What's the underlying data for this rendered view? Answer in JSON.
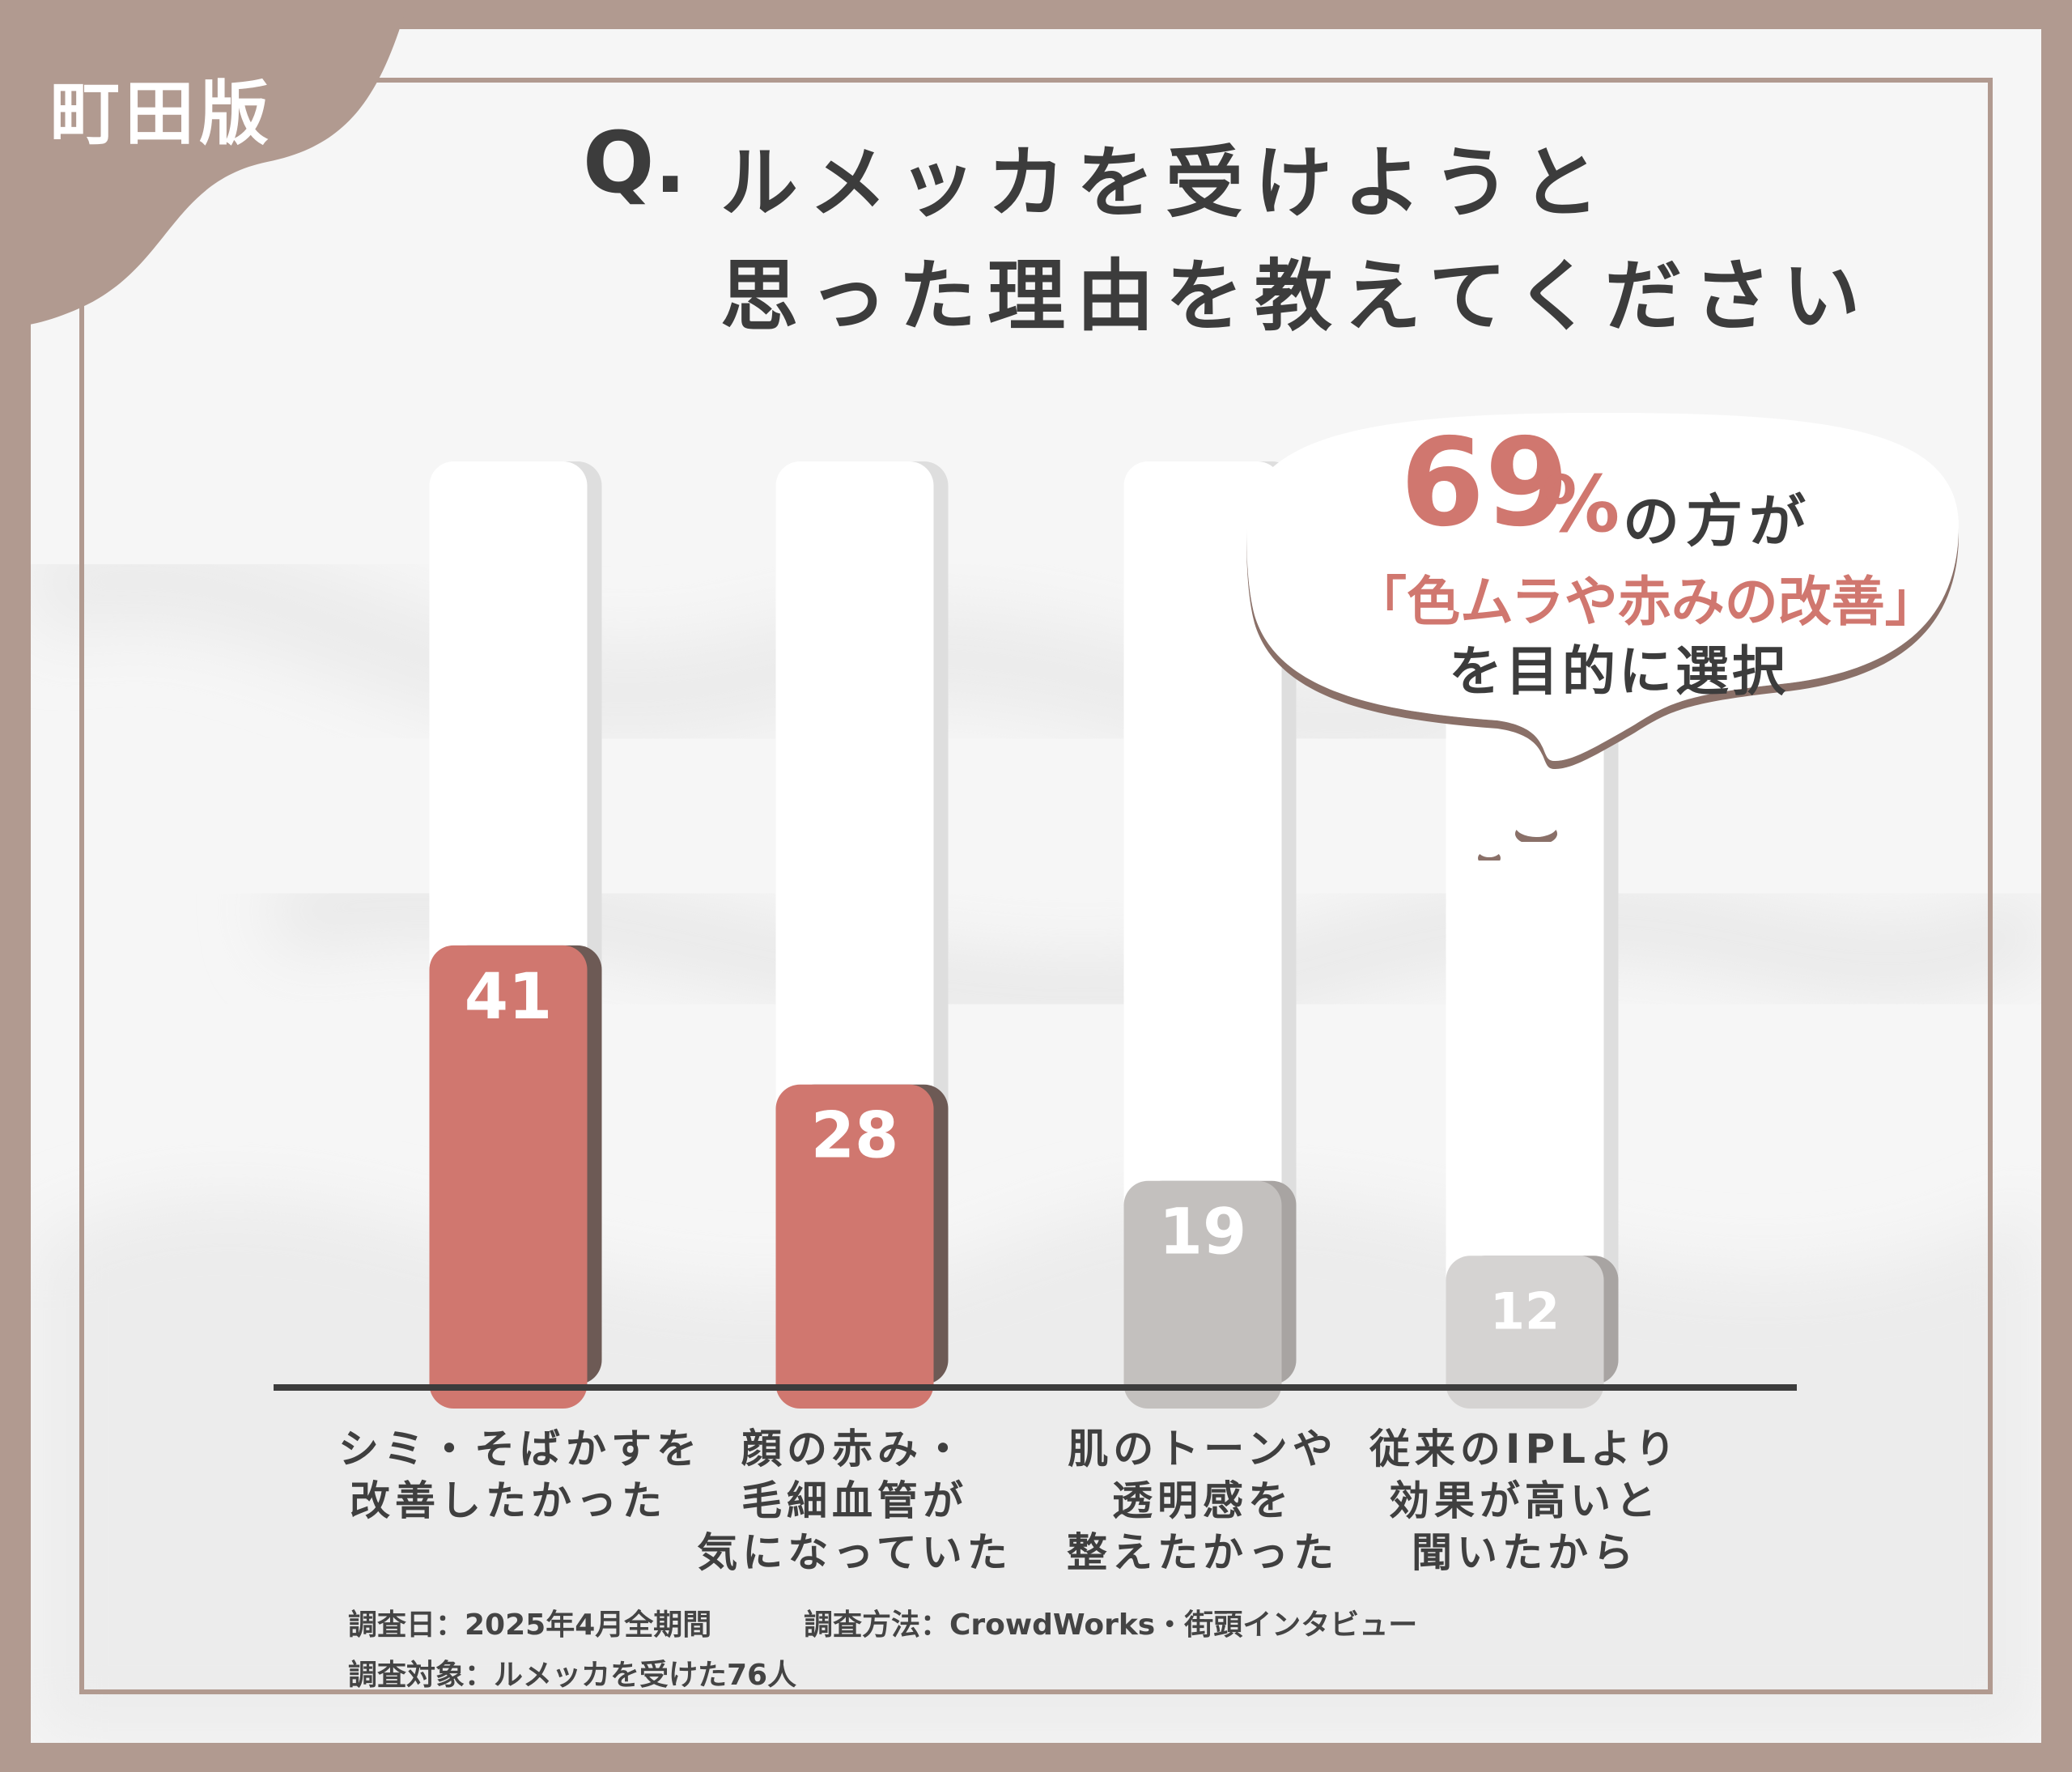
{
  "badge": "町田版",
  "title": {
    "prefix": "Q.",
    "line1": "ルメッカを受けようと",
    "line2": "思った理由を教えてください"
  },
  "callout": {
    "percent_value": "69",
    "percent_sign": "%",
    "text1": "の方が",
    "text2": "「色ムラや赤みの改善」",
    "text3": "を目的に選択"
  },
  "chart_data": {
    "type": "bar",
    "categories": [
      [
        "シミ・そばかすを",
        "改善したかった"
      ],
      [
        "顔の赤み・",
        "毛細血管が",
        "気になっていた"
      ],
      [
        "肌のトーンや",
        "透明感を",
        "整えたかった"
      ],
      [
        "従来のIPLより",
        "効果が高いと",
        "聞いたから"
      ]
    ],
    "values": [
      41,
      28,
      19,
      12
    ],
    "value_labels": [
      "41",
      "28",
      "19",
      "12"
    ],
    "ylim": [
      0,
      100
    ],
    "colors": [
      "#d0776f",
      "#d0776f",
      "#c3c0be",
      "#d5d3d2"
    ],
    "track_color": "#ffffff",
    "baseline_color": "#3c3c3c"
  },
  "survey": {
    "date": "調査日：2025年4月全期間",
    "method": "調査方法：CrowdWorks・街頭インタビュー",
    "target": "調査対象：ルメッカを受けた76人"
  },
  "colors": {
    "frame": "#b19a90",
    "accent": "#d0776f",
    "text": "#3c3c3c"
  }
}
